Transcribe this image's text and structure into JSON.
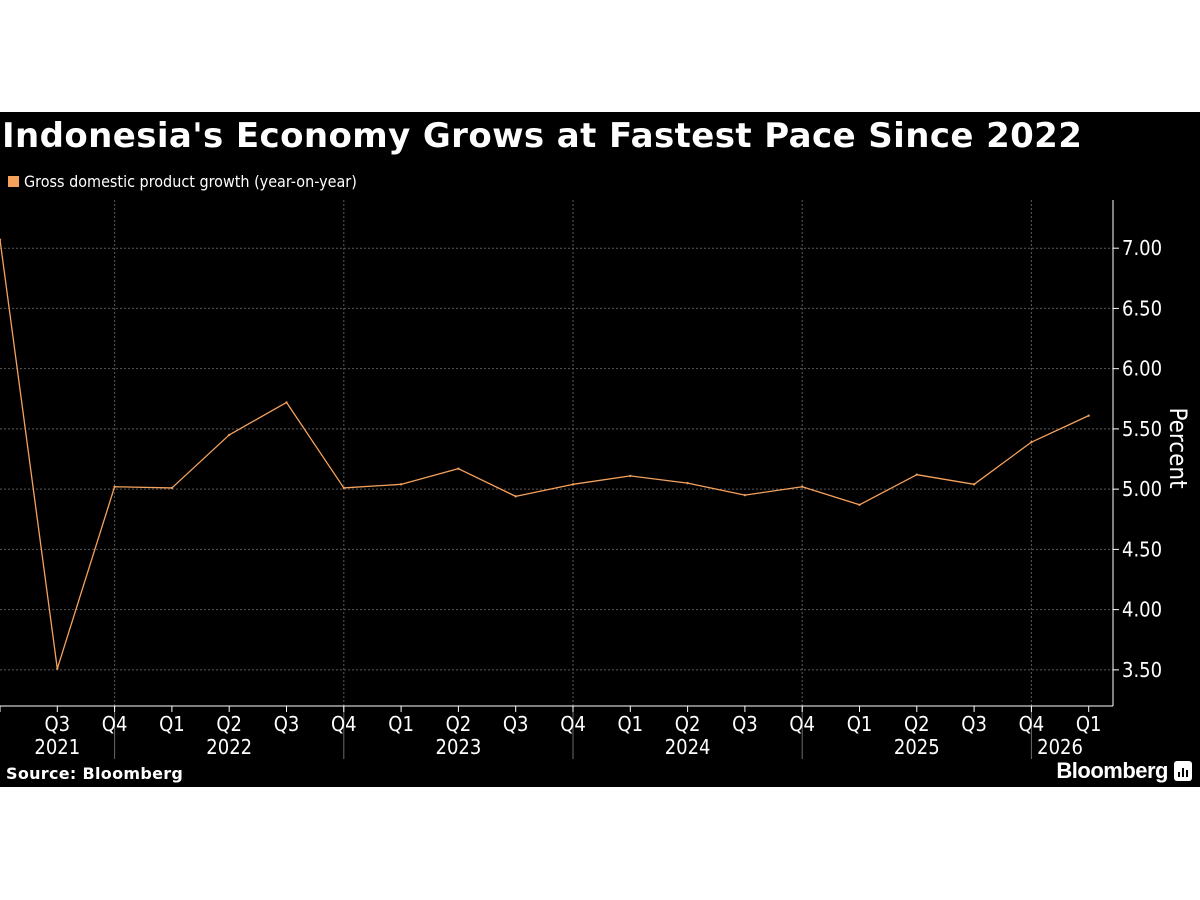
{
  "chart_data": {
    "type": "line",
    "title": "Indonesia's Economy Grows at Fastest Pace Since 2022",
    "ylabel": "Percent",
    "source": "Source: Bloomberg",
    "brand": "Bloomberg",
    "ylim": [
      3.2,
      7.4
    ],
    "yticks": [
      3.5,
      4.0,
      4.5,
      5.0,
      5.5,
      6.0,
      6.5,
      7.0
    ],
    "ytick_labels": [
      "3.50",
      "4.00",
      "4.50",
      "5.00",
      "5.50",
      "6.00",
      "6.50",
      "7.00"
    ],
    "x": [
      "2021-Q2",
      "2021-Q3",
      "2021-Q4",
      "2022-Q1",
      "2022-Q2",
      "2022-Q3",
      "2022-Q4",
      "2023-Q1",
      "2023-Q2",
      "2023-Q3",
      "2023-Q4",
      "2024-Q1",
      "2024-Q2",
      "2024-Q3",
      "2024-Q4",
      "2025-Q1",
      "2025-Q2",
      "2025-Q3",
      "2025-Q4",
      "2026-Q1"
    ],
    "quarter_labels": [
      "",
      "Q3",
      "Q4",
      "Q1",
      "Q2",
      "Q3",
      "Q4",
      "Q1",
      "Q2",
      "Q3",
      "Q4",
      "Q1",
      "Q2",
      "Q3",
      "Q4",
      "Q1",
      "Q2",
      "Q3",
      "Q4",
      "Q1"
    ],
    "years": [
      {
        "label": "2021",
        "start": 0,
        "end": 2
      },
      {
        "label": "2022",
        "start": 2,
        "end": 6
      },
      {
        "label": "2023",
        "start": 6,
        "end": 10
      },
      {
        "label": "2024",
        "start": 10,
        "end": 14
      },
      {
        "label": "2025",
        "start": 14,
        "end": 18
      },
      {
        "label": "2026",
        "start": 18,
        "end": 19
      }
    ],
    "series": [
      {
        "name": "Gross domestic product growth (year-on-year)",
        "color": "#f5a25d",
        "values": [
          7.07,
          3.51,
          5.02,
          5.01,
          5.45,
          5.72,
          5.01,
          5.04,
          5.17,
          4.94,
          5.04,
          5.11,
          5.05,
          4.95,
          5.02,
          4.87,
          5.12,
          5.04,
          5.39,
          5.61
        ]
      }
    ],
    "grid": true,
    "legend": "top-left"
  }
}
